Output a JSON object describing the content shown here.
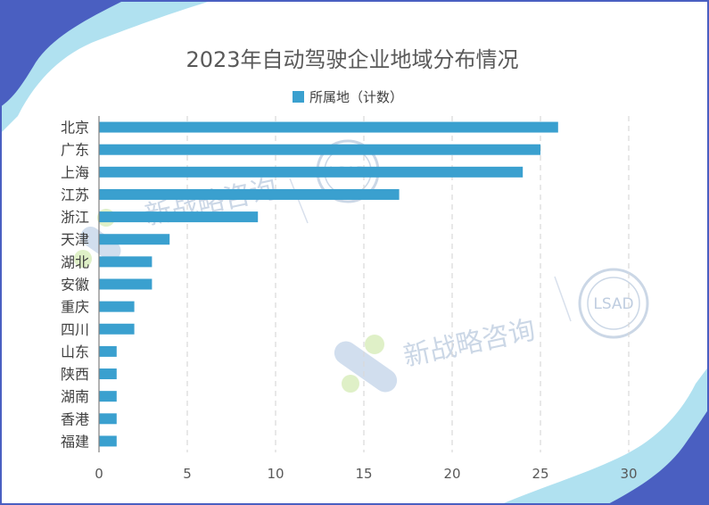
{
  "chart_data": {
    "type": "bar",
    "orientation": "horizontal",
    "title": "2023年自动驾驶企业地域分布情况",
    "legend": {
      "label": "所属地（计数）",
      "position": "top"
    },
    "categories": [
      "北京",
      "广东",
      "上海",
      "江苏",
      "浙江",
      "天津",
      "湖北",
      "安徽",
      "重庆",
      "四川",
      "山东",
      "陕西",
      "湖南",
      "香港",
      "福建"
    ],
    "values": [
      26,
      25,
      24,
      17,
      9,
      4,
      3,
      3,
      2,
      2,
      1,
      1,
      1,
      1,
      1
    ],
    "xlim": [
      0,
      30
    ],
    "xticks": [
      "0",
      "5",
      "10",
      "15",
      "20",
      "25",
      "30"
    ],
    "grid": "vertical dashed",
    "bar_color": "#3aa0cf"
  },
  "watermark": {
    "text": "新战略咨询",
    "logo_text": "LSAD"
  },
  "colors": {
    "frame_border": "#4a5fc1",
    "decor_dark": "#3f56c0",
    "decor_light": "#8fd4ea"
  }
}
